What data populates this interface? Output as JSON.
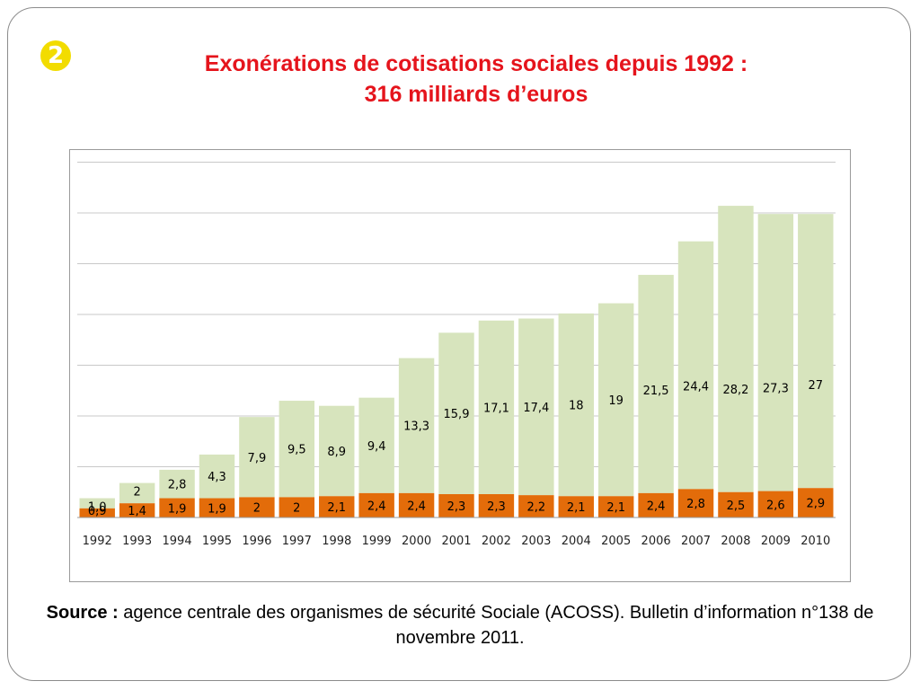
{
  "slide": {
    "badge": "2",
    "title_line1": "Exonérations de cotisations sociales depuis 1992 :",
    "title_line2": "316 milliards d’euros",
    "source_label": "Source :",
    "source_text": " agence centrale des organismes de sécurité Sociale (ACOSS). Bulletin d’information n°138 de novembre 2011."
  },
  "colors": {
    "title": "#e5141c",
    "badge": "#f2dc00",
    "bottom_series": "#e36c0a",
    "top_series": "#d7e4bd",
    "grid": "#c8c8c8"
  },
  "chart_data": {
    "type": "bar",
    "stacked": true,
    "categories": [
      "1992",
      "1993",
      "1994",
      "1995",
      "1996",
      "1997",
      "1998",
      "1999",
      "2000",
      "2001",
      "2002",
      "2003",
      "2004",
      "2005",
      "2006",
      "2007",
      "2008",
      "2009",
      "2010"
    ],
    "series": [
      {
        "values": [
          0.9,
          1.4,
          1.9,
          1.9,
          2,
          2,
          2.1,
          2.4,
          2.4,
          2.3,
          2.3,
          2.2,
          2.1,
          2.1,
          2.4,
          2.8,
          2.5,
          2.6,
          2.9
        ],
        "labels": [
          "0,9",
          "1,4",
          "1,9",
          "1,9",
          "2",
          "2",
          "2,1",
          "2,4",
          "2,4",
          "2,3",
          "2,3",
          "2,2",
          "2,1",
          "2,1",
          "2,4",
          "2,8",
          "2,5",
          "2,6",
          "2,9"
        ]
      },
      {
        "values": [
          1.0,
          2,
          2.8,
          4.3,
          7.9,
          9.5,
          8.9,
          9.4,
          13.3,
          15.9,
          17.1,
          17.4,
          18,
          19,
          21.5,
          24.4,
          28.2,
          27.3,
          27
        ],
        "labels": [
          "1,0",
          "2",
          "2,8",
          "4,3",
          "7,9",
          "9,5",
          "8,9",
          "9,4",
          "13,3",
          "15,9",
          "17,1",
          "17,4",
          "18",
          "19",
          "21,5",
          "24,4",
          "28,2",
          "27,3",
          "27"
        ]
      }
    ],
    "ylim": [
      0,
      35
    ],
    "gridlines": true,
    "y_axis_labels_visible": false,
    "legend": "none"
  }
}
